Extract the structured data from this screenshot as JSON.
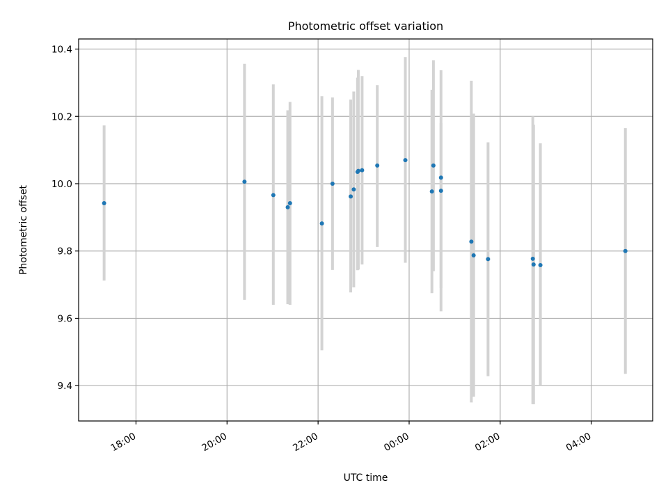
{
  "chart_data": {
    "type": "scatter",
    "title": "Photometric offset variation",
    "xlabel": "UTC time",
    "ylabel": "Photometric offset",
    "grid": true,
    "x_tick_labels": [
      "18:00",
      "20:00",
      "22:00",
      "00:00",
      "02:00",
      "04:00"
    ],
    "x_tick_hours": [
      18,
      20,
      22,
      24,
      26,
      28
    ],
    "xlim_hours": [
      16.74,
      29.35
    ],
    "y_ticks": [
      9.4,
      9.6,
      9.8,
      10.0,
      10.2,
      10.4
    ],
    "y_tick_labels": [
      "9.4",
      "9.6",
      "9.8",
      "10.0",
      "10.2",
      "10.4"
    ],
    "ylim": [
      9.295,
      10.43
    ],
    "colors": {
      "marker": "#1f77b4",
      "errorbar": "#d3d3d3",
      "grid": "#b0b0b0"
    },
    "series": [
      {
        "points": [
          {
            "t": "17:18",
            "y": 9.942,
            "ylo": 9.712,
            "yhi": 10.173
          },
          {
            "t": "20:23",
            "y": 10.006,
            "ylo": 9.655,
            "yhi": 10.356
          },
          {
            "t": "21:01",
            "y": 9.966,
            "ylo": 9.64,
            "yhi": 10.295
          },
          {
            "t": "21:20",
            "y": 9.93,
            "ylo": 9.642,
            "yhi": 10.218
          },
          {
            "t": "21:23",
            "y": 9.942,
            "ylo": 9.64,
            "yhi": 10.243
          },
          {
            "t": "22:05",
            "y": 9.882,
            "ylo": 9.505,
            "yhi": 10.26
          },
          {
            "t": "22:19",
            "y": 10.0,
            "ylo": 9.744,
            "yhi": 10.256
          },
          {
            "t": "22:43",
            "y": 9.962,
            "ylo": 9.677,
            "yhi": 10.25
          },
          {
            "t": "22:47",
            "y": 9.983,
            "ylo": 9.692,
            "yhi": 10.274
          },
          {
            "t": "22:52",
            "y": 10.035,
            "ylo": 9.743,
            "yhi": 10.315
          },
          {
            "t": "22:53",
            "y": 10.038,
            "ylo": 9.745,
            "yhi": 10.338
          },
          {
            "t": "22:58",
            "y": 10.04,
            "ylo": 9.76,
            "yhi": 10.32
          },
          {
            "t": "23:18",
            "y": 10.054,
            "ylo": 9.812,
            "yhi": 10.293
          },
          {
            "t": "23:55",
            "y": 10.07,
            "ylo": 9.765,
            "yhi": 10.376
          },
          {
            "t": "00:30",
            "y": 9.977,
            "ylo": 9.675,
            "yhi": 10.279
          },
          {
            "t": "00:32",
            "y": 10.054,
            "ylo": 9.74,
            "yhi": 10.367
          },
          {
            "t": "00:42",
            "y": 9.979,
            "ylo": 9.621,
            "yhi": 10.337
          },
          {
            "t": "00:42",
            "y": 10.018,
            "ylo": 9.69,
            "yhi": 10.18
          },
          {
            "t": "01:22",
            "y": 9.828,
            "ylo": 9.35,
            "yhi": 10.306
          },
          {
            "t": "01:25",
            "y": 9.787,
            "ylo": 9.367,
            "yhi": 10.208
          },
          {
            "t": "01:44",
            "y": 9.776,
            "ylo": 9.428,
            "yhi": 10.123
          },
          {
            "t": "02:43",
            "y": 9.777,
            "ylo": 9.345,
            "yhi": 10.2
          },
          {
            "t": "02:44",
            "y": 9.76,
            "ylo": 9.345,
            "yhi": 10.175
          },
          {
            "t": "02:53",
            "y": 9.758,
            "ylo": 9.4,
            "yhi": 10.12
          },
          {
            "t": "04:45",
            "y": 9.8,
            "ylo": 9.435,
            "yhi": 10.165
          }
        ]
      }
    ]
  }
}
